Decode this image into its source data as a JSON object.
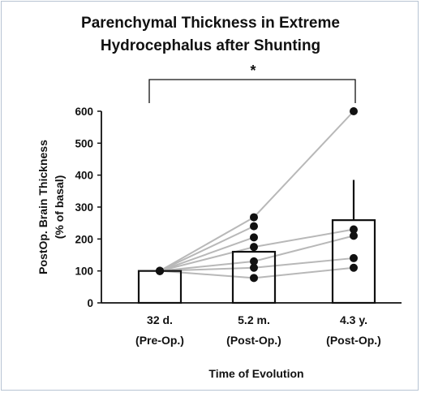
{
  "chart_data": {
    "type": "bar",
    "title": "Parenchymal Thickness in Extreme Hydrocephalus after Shunting",
    "title_lines": [
      "Parenchymal Thickness in Extreme",
      "Hydrocephalus after Shunting"
    ],
    "xlabel": "Time of Evolution",
    "ylabel_lines": [
      "PostOp. Brain Thickness",
      "(% of basal)"
    ],
    "categories": [
      {
        "line1": "32 d.",
        "line2": "(Pre-Op.)"
      },
      {
        "line1": "5.2 m.",
        "line2": "(Post-Op.)"
      },
      {
        "line1": "4.3 y.",
        "line2": "(Post-Op.)"
      }
    ],
    "values": [
      100,
      160,
      259
    ],
    "error_bars": [
      null,
      null,
      385
    ],
    "ylim": [
      0,
      600
    ],
    "yticks": [
      0,
      100,
      200,
      300,
      400,
      500,
      600
    ],
    "individual_points": [
      [
        100,
        100,
        100,
        100,
        100,
        100,
        100
      ],
      [
        78,
        110,
        130,
        175,
        205,
        240,
        268
      ],
      [
        110,
        140,
        210,
        230,
        600
      ]
    ],
    "connecting_lines": [
      [
        100,
        78
      ],
      [
        100,
        110
      ],
      [
        100,
        130
      ],
      [
        100,
        175
      ],
      [
        100,
        205
      ],
      [
        100,
        240
      ],
      [
        100,
        268
      ],
      [
        78,
        110
      ],
      [
        110,
        140
      ],
      [
        130,
        210
      ],
      [
        175,
        230
      ],
      [
        268,
        600
      ]
    ],
    "significance": {
      "label": "*",
      "from_category": 0,
      "to_category": 2
    },
    "colors": {
      "bar_fill": "#ffffff",
      "bar_stroke": "#111111",
      "line": "#b8b8b8",
      "point": "#111111"
    }
  }
}
